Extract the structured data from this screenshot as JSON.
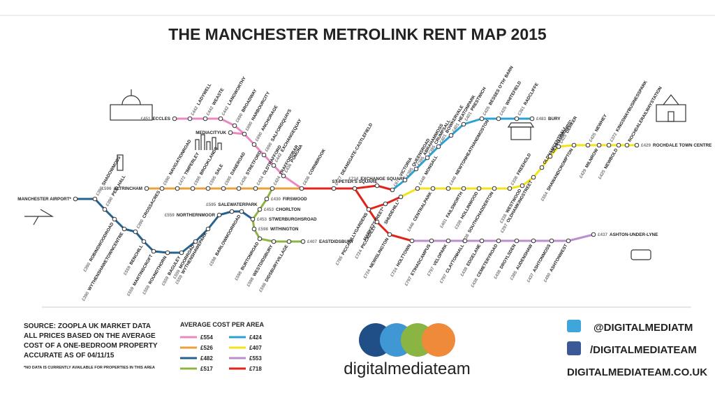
{
  "header": {
    "title": "THE MANCHESTER METROLINK RENT MAP 2015"
  },
  "stations": [
    {
      "name": "ECCLES",
      "price": "£451"
    },
    {
      "name": "LADYWELL",
      "price": "£442"
    },
    {
      "name": "WEASTE",
      "price": "£442"
    },
    {
      "name": "LANGWORTHY",
      "price": "£442"
    },
    {
      "name": "BROADWAY",
      "price": "£690"
    },
    {
      "name": "HARBOURCITY",
      "price": "£690"
    },
    {
      "name": "MEDIACITYUK"
    },
    {
      "name": "ANCHORAGE",
      "price": "£690"
    },
    {
      "name": "SALFORDQUAYS",
      "price": "£690"
    },
    {
      "name": "EXCHANGEQUAY",
      "price": "£442"
    },
    {
      "name": "POMONA",
      "price": "£436"
    },
    {
      "name": "CORNBROOK",
      "price": "£636"
    },
    {
      "name": "ALTRINCHAM",
      "price": "£596"
    },
    {
      "name": "NAVIGATIONROAD",
      "price": "£590"
    },
    {
      "name": "TIMPERLEY",
      "price": "£472"
    },
    {
      "name": "BROOKLANDS",
      "price": "£595"
    },
    {
      "name": "SALE",
      "price": "£595"
    },
    {
      "name": "DANEROAD",
      "price": "£595"
    },
    {
      "name": "STRETFORD",
      "price": "£436"
    },
    {
      "name": "OLDTRAFFORD",
      "price": "£424"
    },
    {
      "name": "TRAFFORDBAR",
      "price": "£424"
    },
    {
      "name": "FIRSWOOD",
      "price": "£430"
    },
    {
      "name": "CHORLTON",
      "price": "£453"
    },
    {
      "name": "STWERBURGHSROAD",
      "price": "£453"
    },
    {
      "name": "WITHINGTON",
      "price": "£598"
    },
    {
      "name": "BURTONROAD",
      "price": "£598"
    },
    {
      "name": "WESTDIDSBURY",
      "price": "£598"
    },
    {
      "name": "DIDSBURYVILLAGE",
      "price": "£598"
    },
    {
      "name": "EASTDIDSBURY",
      "price": "£407"
    },
    {
      "name": "MANCHESTER AIRPORT*"
    },
    {
      "name": "SHADOWMOSS",
      "price": "£390"
    },
    {
      "name": "PEELHALL",
      "price": "£390"
    },
    {
      "name": "ROBINSWOODROAD",
      "price": "£390"
    },
    {
      "name": "WYTHENSHAWETOWNCENTRE",
      "price": "£390"
    },
    {
      "name": "CROSSACRES",
      "price": "£390"
    },
    {
      "name": "BENCHILL",
      "price": "£559"
    },
    {
      "name": "MARTINSCROFT",
      "price": "£559"
    },
    {
      "name": "ROUNDTHORN",
      "price": "£559"
    },
    {
      "name": "BAGULEY",
      "price": "£559"
    },
    {
      "name": "MOORROAD",
      "price": "£559"
    },
    {
      "name": "WYTHENSHAWEPARK",
      "price": "£559"
    },
    {
      "name": "NORTHERNMOOR",
      "price": "£559"
    },
    {
      "name": "SALEWATERPARK",
      "price": "£595"
    },
    {
      "name": "BARLOWMOORROAD",
      "price": "£598"
    },
    {
      "name": "DEANSGATE-CASTLEFIELD",
      "price": "£677"
    },
    {
      "name": "ST PETER'S SQUARE"
    },
    {
      "name": "EXCHANGE SQUARE",
      "price": "£734"
    },
    {
      "name": "MARKETSTREET*"
    },
    {
      "name": "PICCADILLYGARDENS",
      "price": "£785"
    },
    {
      "name": "PICCADILLY",
      "price": "£724"
    },
    {
      "name": "NEWISLINGTON",
      "price": "£724"
    },
    {
      "name": "HOLTTOWN",
      "price": "£724"
    },
    {
      "name": "VICTORIA",
      "price": "£677"
    },
    {
      "name": "QUEENSROAD",
      "price": "£395"
    },
    {
      "name": "ABRAHAMMOSS",
      "price": "£395"
    },
    {
      "name": "CRUMPSALL",
      "price": "£395"
    },
    {
      "name": "BOWKERVALE",
      "price": "£401"
    },
    {
      "name": "HEATONPARK",
      "price": "£401"
    },
    {
      "name": "PRESTWICH",
      "price": "£401"
    },
    {
      "name": "BESSES O'TH' BARN",
      "price": "£425"
    },
    {
      "name": "WHITEFIELD",
      "price": "£425"
    },
    {
      "name": "RADCLIFFE",
      "price": "£361"
    },
    {
      "name": "BURY",
      "price": "£483"
    },
    {
      "name": "SHUDEHILL*"
    },
    {
      "name": "MONSALL",
      "price": "£448"
    },
    {
      "name": "CENTRALPARK",
      "price": "£446"
    },
    {
      "name": "NEWTONHEATHANDMOSTON",
      "price": "£446"
    },
    {
      "name": "FAILSWORTH",
      "price": "£401"
    },
    {
      "name": "HOLLINWOOD",
      "price": "£338"
    },
    {
      "name": "SOUTHCHADDERTON",
      "price": "£338"
    },
    {
      "name": "FREEHOLD",
      "price": "£338"
    },
    {
      "name": "WESTWOOD",
      "price": "£338"
    },
    {
      "name": "OLDHAMKINGSTREET",
      "price": "£297"
    },
    {
      "name": "OLDHAMCENTRAL*"
    },
    {
      "name": "OLDHAMMUMPS*"
    },
    {
      "name": "DERKER",
      "price": "£425"
    },
    {
      "name": "SHAWANDCROMPTON",
      "price": "£554"
    },
    {
      "name": "NEWHEY",
      "price": "£425"
    },
    {
      "name": "MILNROW",
      "price": "£429"
    },
    {
      "name": "KINGSWAYBUSINESSPARK",
      "price": "£372"
    },
    {
      "name": "NEWBOLD",
      "price": "£425"
    },
    {
      "name": "ROCHDALERAILWAYSTATION"
    },
    {
      "name": "ROCHDALE TOWN CENTRE",
      "price": "£429"
    },
    {
      "name": "ETIHADCAMPUS",
      "price": "£797"
    },
    {
      "name": "VELOPARK",
      "price": "£797"
    },
    {
      "name": "CLAYTONHALL",
      "price": "£797"
    },
    {
      "name": "EDGELANE",
      "price": "£438"
    },
    {
      "name": "CEMETERYROAD",
      "price": "£438"
    },
    {
      "name": "DROYLSDEN",
      "price": "£438"
    },
    {
      "name": "AUDENSHAW",
      "price": "£385"
    },
    {
      "name": "ASHTONMOSS",
      "price": "£437"
    },
    {
      "name": "ASHTONWEST",
      "price": "£490"
    },
    {
      "name": "ASHTON-UNDER-LYNE",
      "price": "£437"
    }
  ],
  "source": {
    "lines": [
      "SOURCE: ZOOPLA UK MARKET DATA",
      "ALL PRICES BASED ON THE AVERAGE",
      "COST OF A ONE-BEDROOM PROPERTY",
      "ACCURATE AS OF 04/11/15"
    ],
    "note": "*NO DATA IS CURRENTLY AVAILABLE FOR PROPERTIES IN THIS AREA"
  },
  "legend": {
    "title": "AVERAGE COST PER AREA",
    "items": [
      {
        "cost": "£554",
        "color": "#e88ac0"
      },
      {
        "cost": "£526",
        "color": "#e9a23b"
      },
      {
        "cost": "£482",
        "color": "#24628f"
      },
      {
        "cost": "£517",
        "color": "#8db543"
      },
      {
        "cost": "£424",
        "color": "#2aa2d6"
      },
      {
        "cost": "£407",
        "color": "#f2e31b"
      },
      {
        "cost": "£553",
        "color": "#bb8fce"
      },
      {
        "cost": "£718",
        "color": "#e2231a"
      }
    ]
  },
  "brand": {
    "name": "digitalmediateam",
    "twitter": "@DIGITALMEDIATM",
    "facebook": "/DIGITALMEDIATEAM",
    "website": "DIGITALMEDIATEAM.CO.UK"
  }
}
